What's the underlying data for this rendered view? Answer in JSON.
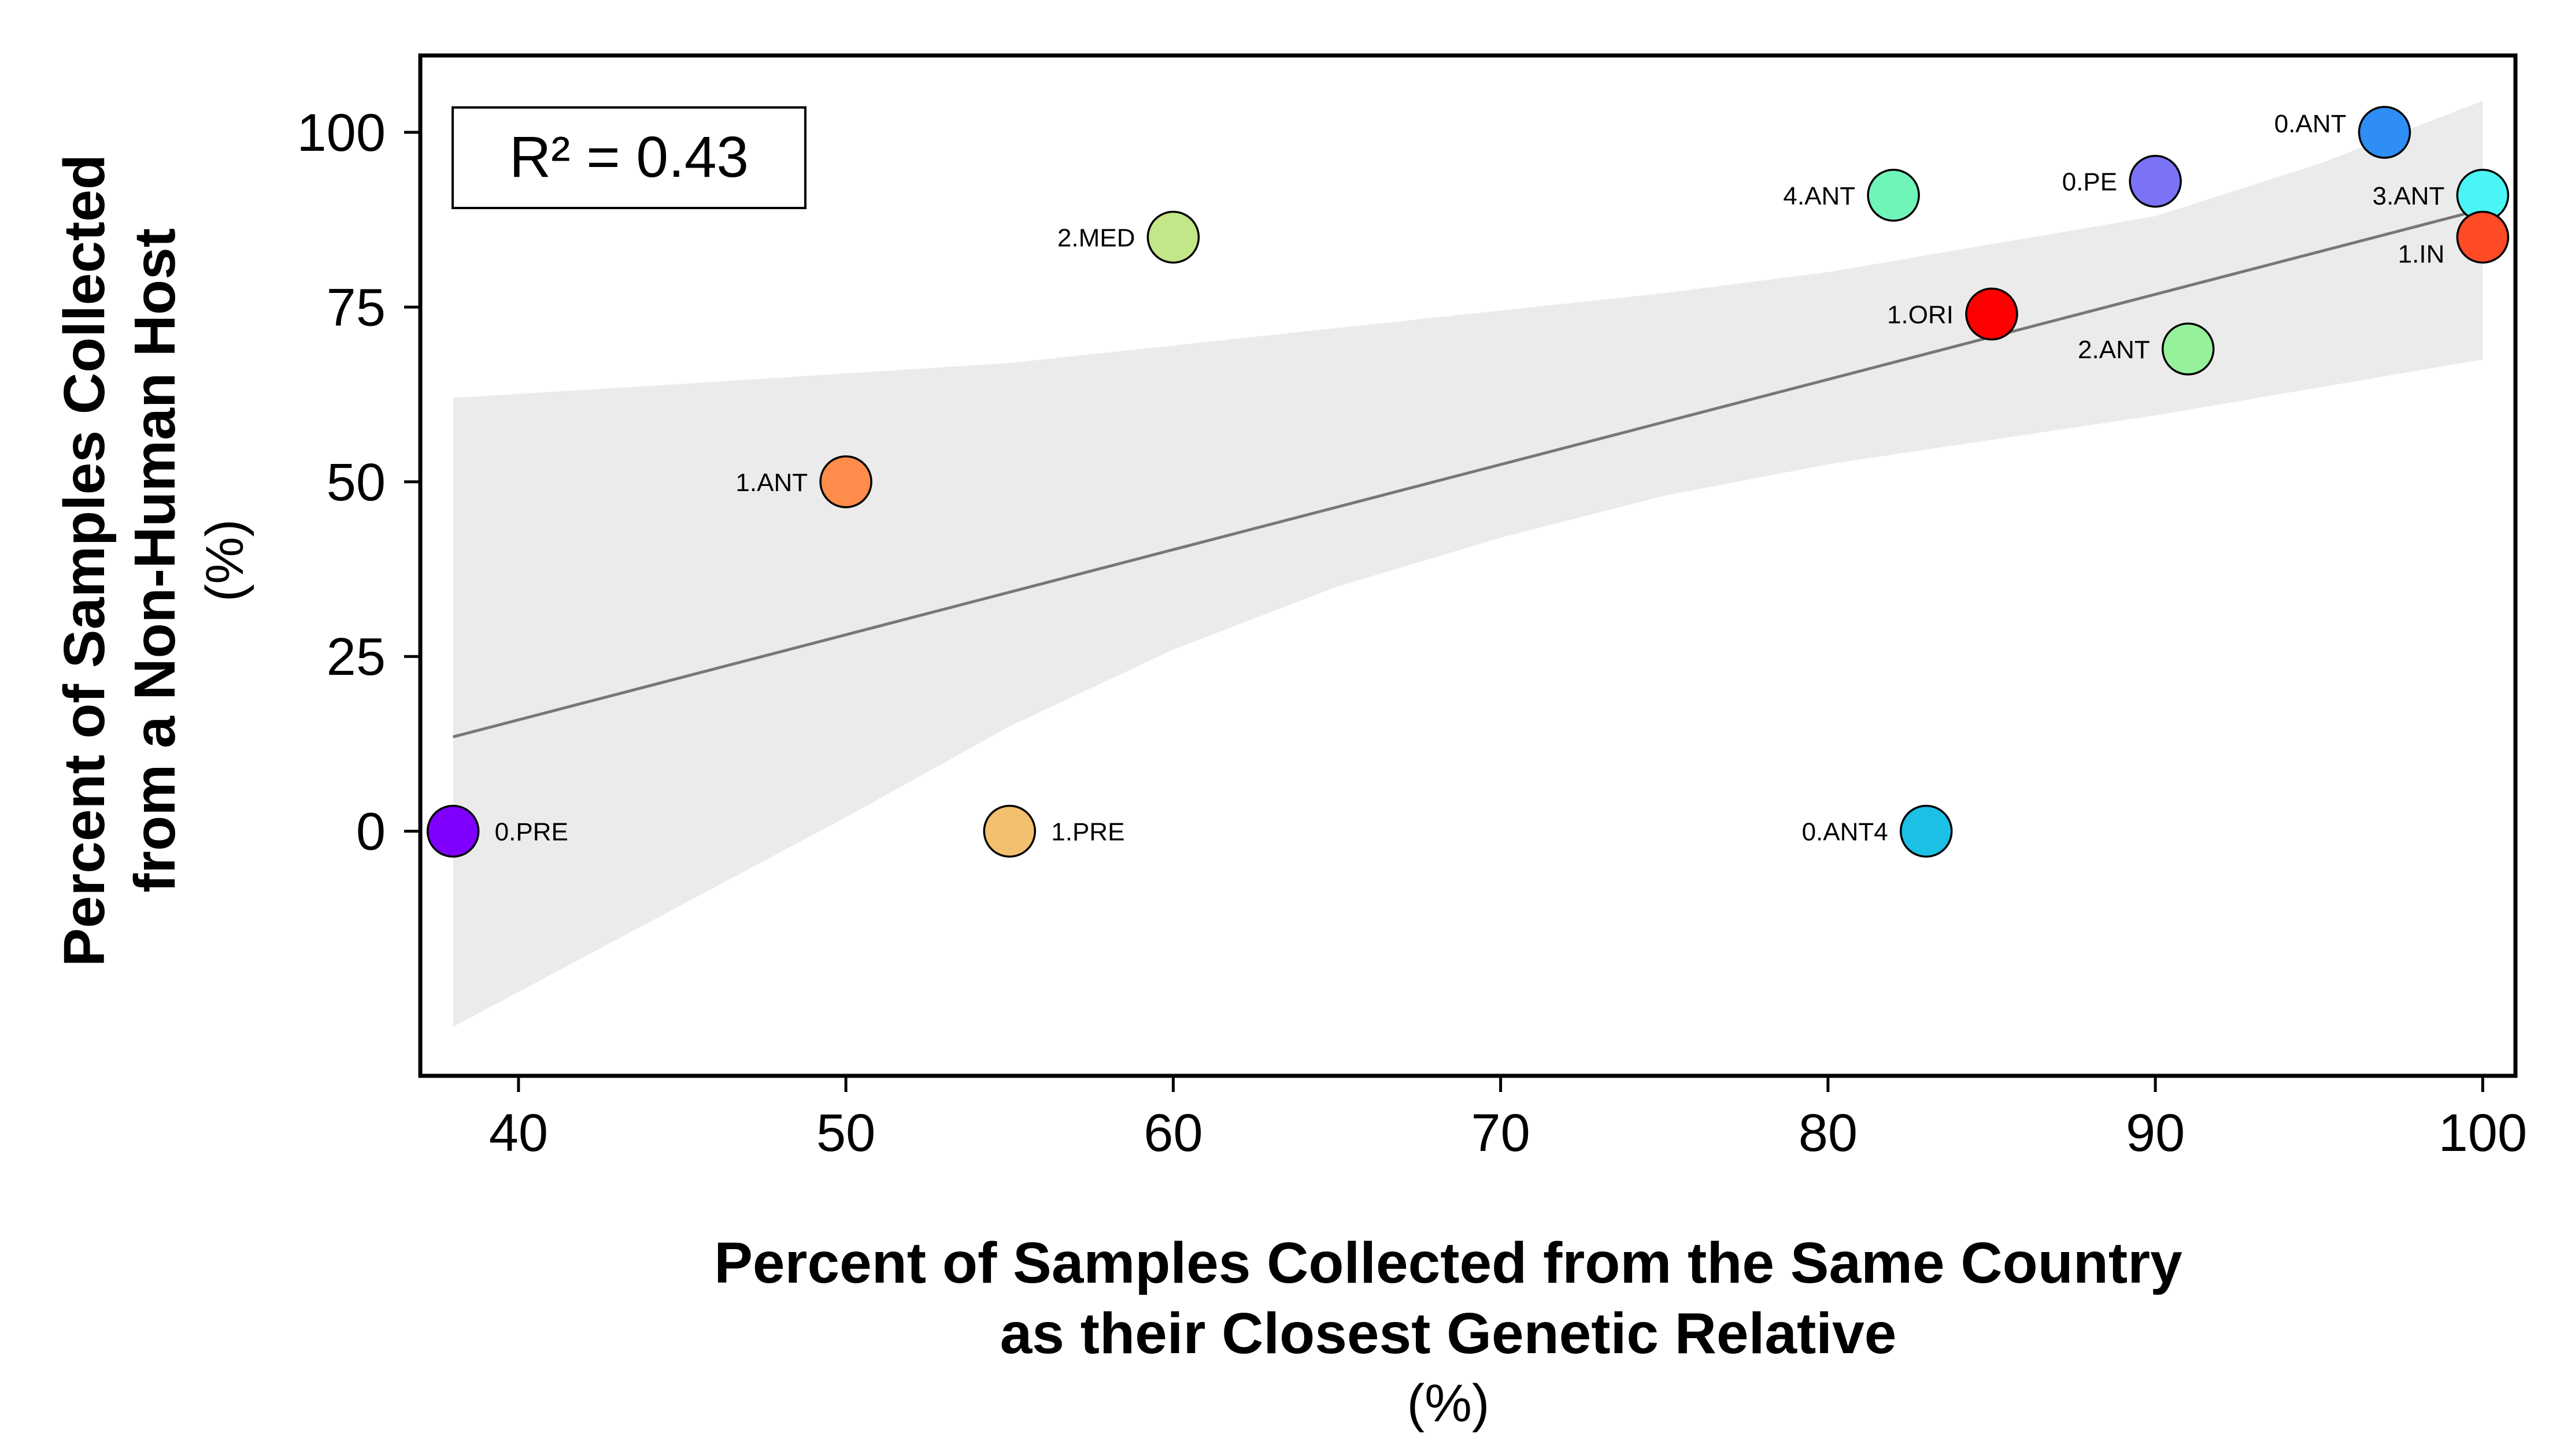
{
  "chart_data": {
    "type": "scatter",
    "xlabel_lines": [
      "Percent of Samples Collected from the Same Country",
      "as their Closest Genetic Relative"
    ],
    "xlabel_unit": "(%)",
    "ylabel_lines": [
      "Percent of Samples Collected",
      "from a Non-Human Host"
    ],
    "ylabel_unit": "(%)",
    "xlim": [
      37,
      101
    ],
    "ylim": [
      -35,
      111
    ],
    "x_ticks": [
      40,
      50,
      60,
      70,
      80,
      90,
      100
    ],
    "y_ticks": [
      0,
      25,
      50,
      75,
      100
    ],
    "annotation": "R² = 0.43",
    "grid": false,
    "trendline": {
      "x": [
        38,
        100
      ],
      "y": [
        13.5,
        89
      ],
      "color": "#777777",
      "band_color": "#ebebeb",
      "band_upper": [
        [
          38,
          62
        ],
        [
          45,
          64
        ],
        [
          50,
          65.5
        ],
        [
          55,
          67
        ],
        [
          60,
          69.5
        ],
        [
          65,
          72
        ],
        [
          70,
          74.5
        ],
        [
          75,
          77
        ],
        [
          80,
          80
        ],
        [
          85,
          84
        ],
        [
          90,
          88
        ],
        [
          95,
          95.5
        ],
        [
          100,
          104.5
        ]
      ],
      "band_lower": [
        [
          38,
          -28
        ],
        [
          45,
          -10.5
        ],
        [
          50,
          2
        ],
        [
          55,
          15
        ],
        [
          60,
          26
        ],
        [
          65,
          35
        ],
        [
          70,
          42
        ],
        [
          75,
          48
        ],
        [
          80,
          52.5
        ],
        [
          85,
          56
        ],
        [
          90,
          59.5
        ],
        [
          95,
          63.5
        ],
        [
          100,
          67.5
        ]
      ]
    },
    "points": [
      {
        "label": "0.PRE",
        "x": 38,
        "y": 0,
        "color": "#7f00ff",
        "label_side": "right"
      },
      {
        "label": "1.ANT",
        "x": 50,
        "y": 50,
        "color": "#ff8c4a",
        "label_side": "left"
      },
      {
        "label": "1.PRE",
        "x": 55,
        "y": 0,
        "color": "#f2c06e",
        "label_side": "right"
      },
      {
        "label": "2.MED",
        "x": 60,
        "y": 85,
        "color": "#c3e688",
        "label_side": "left"
      },
      {
        "label": "4.ANT",
        "x": 82,
        "y": 91,
        "color": "#6ff5b8",
        "label_side": "left"
      },
      {
        "label": "0.ANT4",
        "x": 83,
        "y": 0,
        "color": "#1bc0e4",
        "label_side": "left"
      },
      {
        "label": "1.ORI",
        "x": 85,
        "y": 74,
        "color": "#ff0000",
        "label_side": "left"
      },
      {
        "label": "0.PE",
        "x": 90,
        "y": 93,
        "color": "#7b73f5",
        "label_side": "left"
      },
      {
        "label": "2.ANT",
        "x": 91,
        "y": 69,
        "color": "#96f29a",
        "label_side": "left"
      },
      {
        "label": "0.ANT",
        "x": 97,
        "y": 100,
        "color": "#2e8ef5",
        "label_side": "left-up"
      },
      {
        "label": "3.ANT",
        "x": 100,
        "y": 91,
        "color": "#4cf5f5",
        "label_side": "left"
      },
      {
        "label": "1.IN",
        "x": 100,
        "y": 85,
        "color": "#ff4a26",
        "label_side": "left-down"
      }
    ]
  }
}
